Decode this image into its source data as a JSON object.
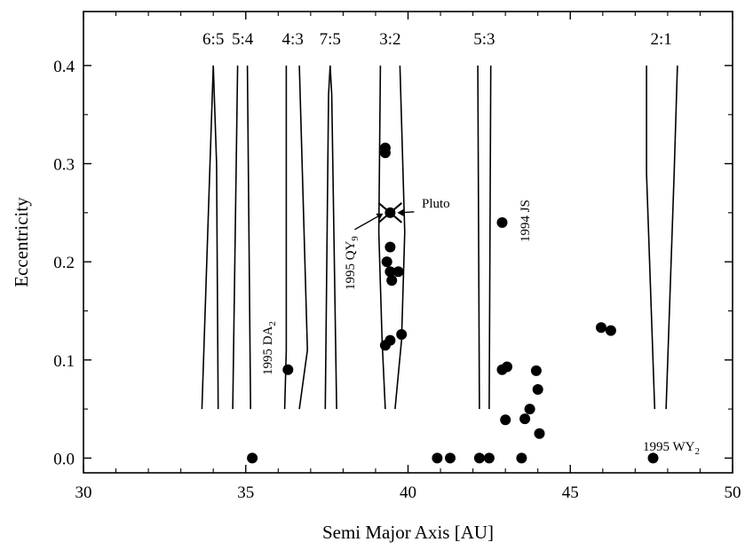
{
  "chart_data": {
    "type": "scatter",
    "xlabel": "Semi Major Axis [AU]",
    "ylabel": "Eccentricity",
    "xlim": [
      30,
      50
    ],
    "ylim": [
      -0.015,
      0.455
    ],
    "x_ticks": [
      30,
      35,
      40,
      45,
      50
    ],
    "y_ticks": [
      0.0,
      0.1,
      0.2,
      0.3,
      0.4
    ],
    "y_tick_labels": [
      "0.0",
      "0.1",
      "0.2",
      "0.3",
      "0.4"
    ],
    "grid": false,
    "resonances": [
      {
        "label": "6:5",
        "a": 34.0
      },
      {
        "label": "5:4",
        "a": 34.9
      },
      {
        "label": "4:3",
        "a": 36.45
      },
      {
        "label": "7:5",
        "a": 37.6
      },
      {
        "label": "3:2",
        "a": 39.45
      },
      {
        "label": "5:3",
        "a": 42.35
      },
      {
        "label": "2:1",
        "a": 47.8
      }
    ],
    "resonance_boundaries": [
      {
        "name": "6:5-left",
        "points": [
          [
            33.65,
            0.05
          ],
          [
            33.9,
            0.3
          ],
          [
            34.0,
            0.4
          ]
        ]
      },
      {
        "name": "6:5-right",
        "points": [
          [
            34.15,
            0.05
          ],
          [
            34.1,
            0.3
          ],
          [
            34.0,
            0.4
          ]
        ]
      },
      {
        "name": "5:4-left",
        "points": [
          [
            34.6,
            0.05
          ],
          [
            34.75,
            0.4
          ]
        ]
      },
      {
        "name": "5:4-right",
        "points": [
          [
            35.15,
            0.05
          ],
          [
            35.05,
            0.4
          ]
        ]
      },
      {
        "name": "4:3-left",
        "points": [
          [
            36.2,
            0.05
          ],
          [
            36.25,
            0.11
          ],
          [
            36.25,
            0.4
          ]
        ]
      },
      {
        "name": "4:3-right",
        "points": [
          [
            36.65,
            0.05
          ],
          [
            36.9,
            0.11
          ],
          [
            36.65,
            0.4
          ]
        ]
      },
      {
        "name": "7:5-left",
        "points": [
          [
            37.45,
            0.05
          ],
          [
            37.55,
            0.37
          ],
          [
            37.6,
            0.4
          ]
        ]
      },
      {
        "name": "7:5-right",
        "points": [
          [
            37.8,
            0.05
          ],
          [
            37.65,
            0.37
          ],
          [
            37.6,
            0.4
          ]
        ]
      },
      {
        "name": "3:2-left",
        "points": [
          [
            39.3,
            0.05
          ],
          [
            39.2,
            0.12
          ],
          [
            39.1,
            0.23
          ],
          [
            39.15,
            0.4
          ]
        ]
      },
      {
        "name": "3:2-right",
        "points": [
          [
            39.6,
            0.05
          ],
          [
            39.8,
            0.12
          ],
          [
            39.9,
            0.23
          ],
          [
            39.75,
            0.4
          ]
        ]
      },
      {
        "name": "5:3-left",
        "points": [
          [
            42.2,
            0.05
          ],
          [
            42.15,
            0.4
          ]
        ]
      },
      {
        "name": "5:3-right",
        "points": [
          [
            42.5,
            0.05
          ],
          [
            42.55,
            0.4
          ]
        ]
      },
      {
        "name": "2:1-left",
        "points": [
          [
            47.6,
            0.05
          ],
          [
            47.35,
            0.29
          ],
          [
            47.35,
            0.4
          ]
        ]
      },
      {
        "name": "2:1-right",
        "points": [
          [
            47.95,
            0.05
          ],
          [
            48.2,
            0.29
          ],
          [
            48.3,
            0.4
          ]
        ]
      }
    ],
    "points": [
      {
        "x": 35.2,
        "y": 0.0
      },
      {
        "x": 36.3,
        "y": 0.09
      },
      {
        "x": 39.3,
        "y": 0.316
      },
      {
        "x": 39.3,
        "y": 0.311
      },
      {
        "x": 39.35,
        "y": 0.2
      },
      {
        "x": 39.45,
        "y": 0.215
      },
      {
        "x": 39.45,
        "y": 0.19
      },
      {
        "x": 39.5,
        "y": 0.181
      },
      {
        "x": 39.7,
        "y": 0.19
      },
      {
        "x": 39.3,
        "y": 0.115
      },
      {
        "x": 39.45,
        "y": 0.12
      },
      {
        "x": 39.8,
        "y": 0.126
      },
      {
        "x": 40.9,
        "y": 0.0
      },
      {
        "x": 41.3,
        "y": 0.0
      },
      {
        "x": 42.2,
        "y": 0.0
      },
      {
        "x": 42.5,
        "y": 0.0
      },
      {
        "x": 43.5,
        "y": 0.0
      },
      {
        "x": 42.9,
        "y": 0.24
      },
      {
        "x": 42.9,
        "y": 0.09
      },
      {
        "x": 43.05,
        "y": 0.093
      },
      {
        "x": 43.0,
        "y": 0.039
      },
      {
        "x": 43.6,
        "y": 0.04
      },
      {
        "x": 43.75,
        "y": 0.05
      },
      {
        "x": 43.95,
        "y": 0.089
      },
      {
        "x": 44.0,
        "y": 0.07
      },
      {
        "x": 44.05,
        "y": 0.025
      },
      {
        "x": 45.95,
        "y": 0.133
      },
      {
        "x": 46.25,
        "y": 0.13
      },
      {
        "x": 47.55,
        "y": 0.0
      }
    ],
    "pluto": {
      "label": "Pluto",
      "x": 39.45,
      "y": 0.25
    },
    "annotations": [
      {
        "text": "1995 DA",
        "sub": "2"
      },
      {
        "text": "1995 QY",
        "sub": "9"
      },
      {
        "text": "1994 JS",
        "sub": ""
      },
      {
        "text": "1995 WY",
        "sub": "2"
      }
    ]
  }
}
